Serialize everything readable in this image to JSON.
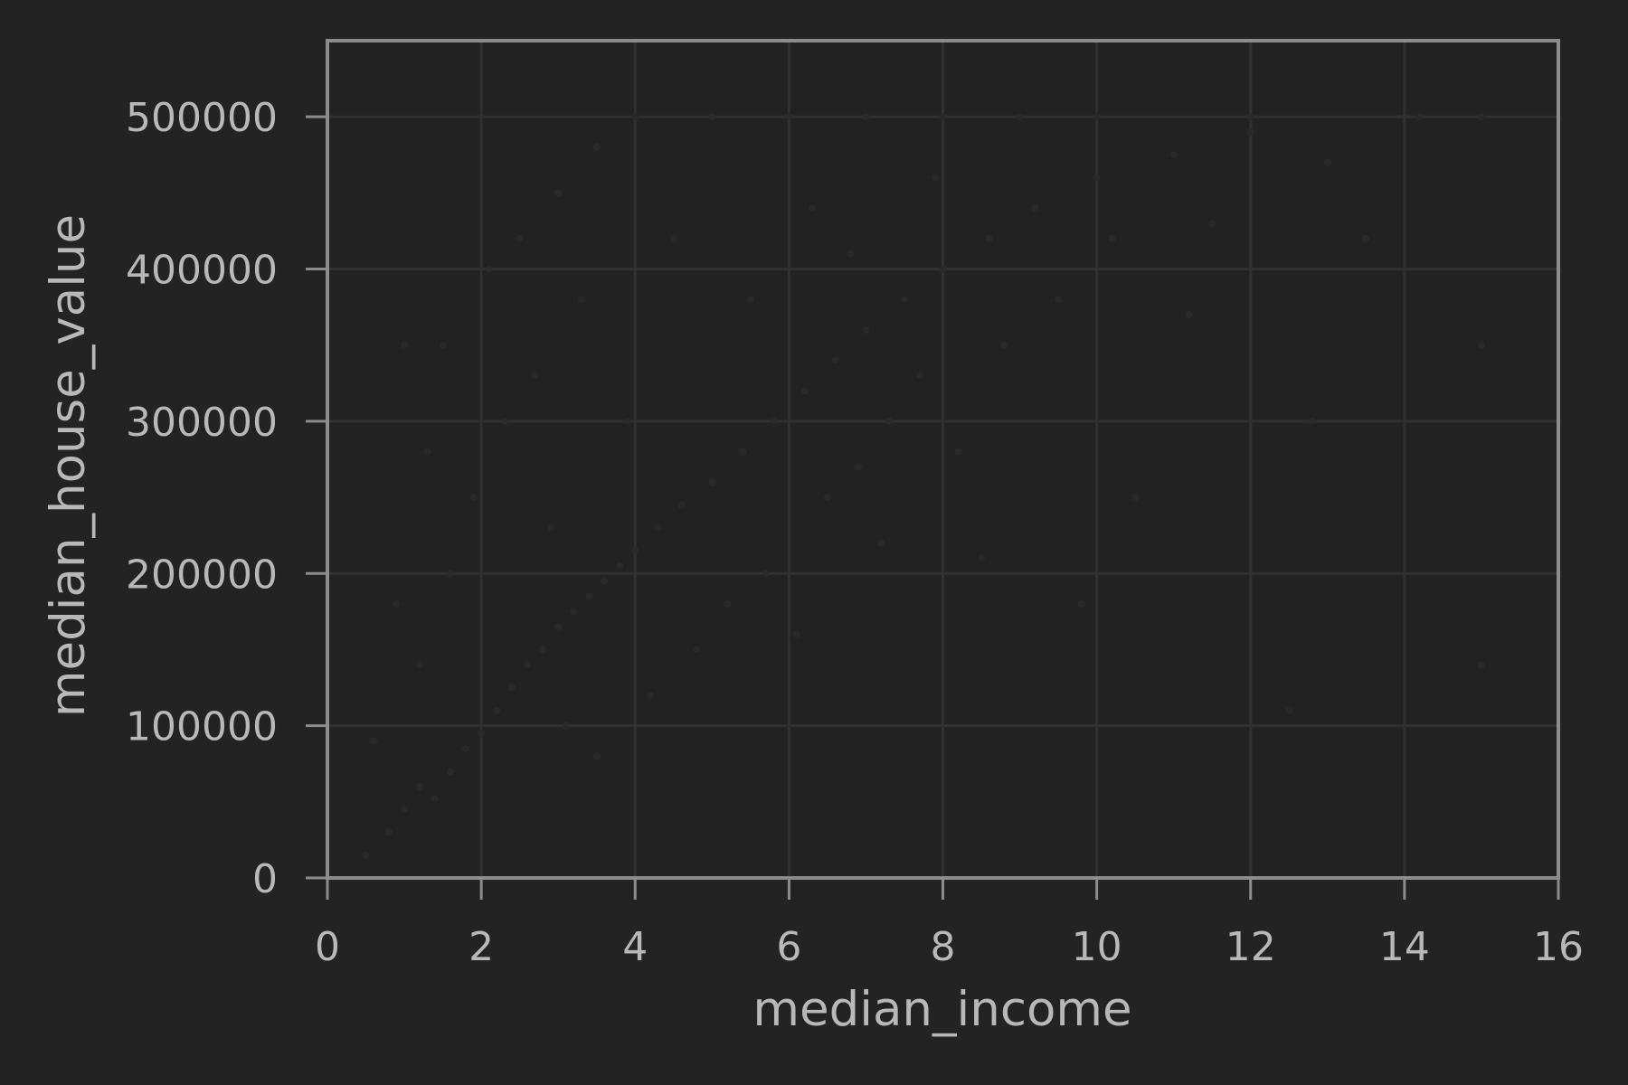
{
  "chart_data": {
    "type": "scatter",
    "title": "",
    "xlabel": "median_income",
    "ylabel": "median_house_value",
    "xlim": [
      0,
      16
    ],
    "ylim": [
      0,
      550000
    ],
    "x_ticks": [
      0,
      2,
      4,
      6,
      8,
      10,
      12,
      14,
      16
    ],
    "y_ticks": [
      0,
      100000,
      200000,
      300000,
      400000,
      500000
    ],
    "x_tick_labels": [
      "0",
      "2",
      "4",
      "6",
      "8",
      "10",
      "12",
      "14",
      "16"
    ],
    "y_tick_labels": [
      "0",
      "100000",
      "200000",
      "300000",
      "400000",
      "500000"
    ],
    "grid": true,
    "marker_alpha": 0.1,
    "points": [
      {
        "x": 0.8,
        "y": 30000
      },
      {
        "x": 1.0,
        "y": 45000
      },
      {
        "x": 1.2,
        "y": 60000
      },
      {
        "x": 1.4,
        "y": 52000
      },
      {
        "x": 1.6,
        "y": 70000
      },
      {
        "x": 1.8,
        "y": 85000
      },
      {
        "x": 2.0,
        "y": 95000
      },
      {
        "x": 2.2,
        "y": 110000
      },
      {
        "x": 2.4,
        "y": 125000
      },
      {
        "x": 2.6,
        "y": 140000
      },
      {
        "x": 2.8,
        "y": 150000
      },
      {
        "x": 3.0,
        "y": 165000
      },
      {
        "x": 3.2,
        "y": 175000
      },
      {
        "x": 3.4,
        "y": 185000
      },
      {
        "x": 3.6,
        "y": 195000
      },
      {
        "x": 3.8,
        "y": 205000
      },
      {
        "x": 4.0,
        "y": 215000
      },
      {
        "x": 4.3,
        "y": 230000
      },
      {
        "x": 4.6,
        "y": 245000
      },
      {
        "x": 5.0,
        "y": 260000
      },
      {
        "x": 5.4,
        "y": 280000
      },
      {
        "x": 5.8,
        "y": 300000
      },
      {
        "x": 6.2,
        "y": 320000
      },
      {
        "x": 6.6,
        "y": 340000
      },
      {
        "x": 7.0,
        "y": 360000
      },
      {
        "x": 7.5,
        "y": 380000
      },
      {
        "x": 8.0,
        "y": 400000
      },
      {
        "x": 8.6,
        "y": 420000
      },
      {
        "x": 9.2,
        "y": 440000
      },
      {
        "x": 10.0,
        "y": 460000
      },
      {
        "x": 11.0,
        "y": 475000
      },
      {
        "x": 12.0,
        "y": 490000
      },
      {
        "x": 1.0,
        "y": 350000
      },
      {
        "x": 1.5,
        "y": 350000
      },
      {
        "x": 2.5,
        "y": 420000
      },
      {
        "x": 3.0,
        "y": 450000
      },
      {
        "x": 3.5,
        "y": 480000
      },
      {
        "x": 4.0,
        "y": 500000
      },
      {
        "x": 5.0,
        "y": 500000
      },
      {
        "x": 6.0,
        "y": 500000
      },
      {
        "x": 7.0,
        "y": 500000
      },
      {
        "x": 8.0,
        "y": 500000
      },
      {
        "x": 9.0,
        "y": 500000
      },
      {
        "x": 10.0,
        "y": 500000
      },
      {
        "x": 12.0,
        "y": 500000
      },
      {
        "x": 15.0,
        "y": 500000
      },
      {
        "x": 15.0,
        "y": 350000
      },
      {
        "x": 15.0,
        "y": 140000
      },
      {
        "x": 1.2,
        "y": 140000
      },
      {
        "x": 1.6,
        "y": 200000
      },
      {
        "x": 1.9,
        "y": 250000
      },
      {
        "x": 2.3,
        "y": 300000
      },
      {
        "x": 2.7,
        "y": 330000
      },
      {
        "x": 3.1,
        "y": 100000
      },
      {
        "x": 3.5,
        "y": 80000
      },
      {
        "x": 4.2,
        "y": 120000
      },
      {
        "x": 4.8,
        "y": 150000
      },
      {
        "x": 5.2,
        "y": 180000
      },
      {
        "x": 5.7,
        "y": 200000
      },
      {
        "x": 6.1,
        "y": 160000
      },
      {
        "x": 6.5,
        "y": 250000
      },
      {
        "x": 6.9,
        "y": 270000
      },
      {
        "x": 7.3,
        "y": 300000
      },
      {
        "x": 7.7,
        "y": 330000
      },
      {
        "x": 8.2,
        "y": 280000
      },
      {
        "x": 8.8,
        "y": 350000
      },
      {
        "x": 9.5,
        "y": 380000
      },
      {
        "x": 10.5,
        "y": 250000
      },
      {
        "x": 11.5,
        "y": 430000
      },
      {
        "x": 12.5,
        "y": 110000
      },
      {
        "x": 13.0,
        "y": 470000
      },
      {
        "x": 0.6,
        "y": 90000
      },
      {
        "x": 0.5,
        "y": 15000
      },
      {
        "x": 0.9,
        "y": 180000
      },
      {
        "x": 1.3,
        "y": 280000
      },
      {
        "x": 2.1,
        "y": 400000
      },
      {
        "x": 2.9,
        "y": 230000
      },
      {
        "x": 3.3,
        "y": 380000
      },
      {
        "x": 3.9,
        "y": 300000
      },
      {
        "x": 4.5,
        "y": 420000
      },
      {
        "x": 5.5,
        "y": 380000
      },
      {
        "x": 6.3,
        "y": 440000
      },
      {
        "x": 6.8,
        "y": 410000
      },
      {
        "x": 7.2,
        "y": 220000
      },
      {
        "x": 7.9,
        "y": 460000
      },
      {
        "x": 8.5,
        "y": 210000
      },
      {
        "x": 9.8,
        "y": 180000
      },
      {
        "x": 10.2,
        "y": 420000
      },
      {
        "x": 11.2,
        "y": 370000
      },
      {
        "x": 12.8,
        "y": 300000
      },
      {
        "x": 13.5,
        "y": 420000
      },
      {
        "x": 14.2,
        "y": 500000
      }
    ]
  },
  "colors": {
    "background": "#232323",
    "marker": "#2a2a2a",
    "grid": "#303030",
    "frame": "#8c8c8c",
    "text": "#b8b8b8"
  }
}
